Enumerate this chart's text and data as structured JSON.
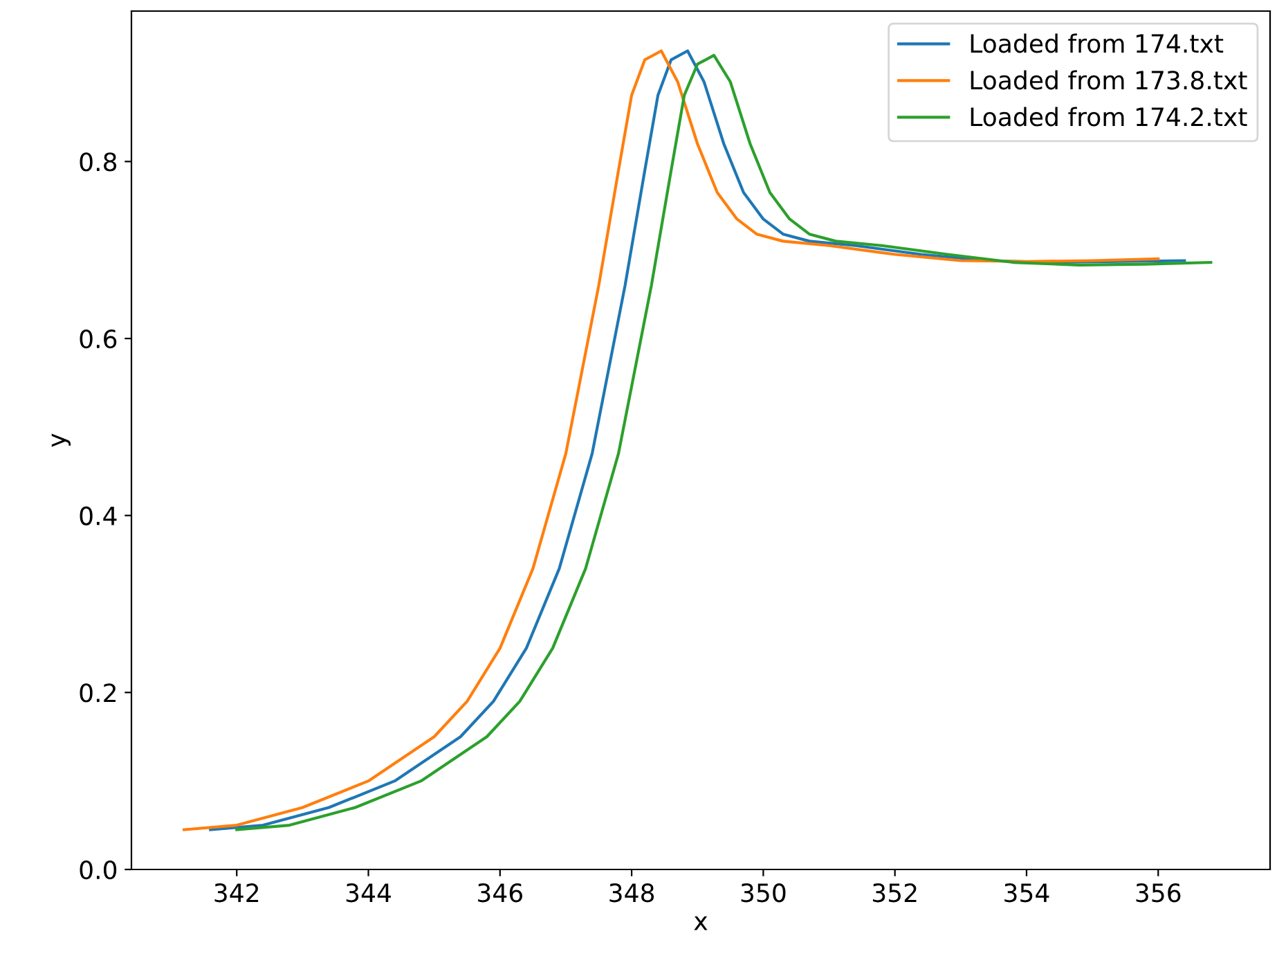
{
  "chart_data": {
    "type": "line",
    "xlabel": "x",
    "ylabel": "y",
    "xlim": [
      340.4,
      357.7
    ],
    "ylim": [
      0,
      0.97
    ],
    "xticks": [
      342,
      344,
      346,
      348,
      350,
      352,
      354,
      356
    ],
    "yticks": [
      {
        "value": 0,
        "label": "0.0"
      },
      0.2,
      0.4,
      0.6,
      0.8
    ],
    "legend": "top right",
    "grid": false,
    "series": [
      {
        "name": "Loaded from 174.txt",
        "color": "#1f77b4",
        "x": [
          341.6,
          342.4,
          343.4,
          344.4,
          345.4,
          345.9,
          346.4,
          346.9,
          347.4,
          347.9,
          348.2,
          348.4,
          348.6,
          348.85,
          349.1,
          349.4,
          349.7,
          350.0,
          350.3,
          350.7,
          351.4,
          352.4,
          353.4,
          354.4,
          355.4,
          356.4
        ],
        "values": [
          0.045,
          0.05,
          0.07,
          0.1,
          0.15,
          0.19,
          0.25,
          0.34,
          0.47,
          0.66,
          0.79,
          0.875,
          0.915,
          0.925,
          0.89,
          0.82,
          0.765,
          0.735,
          0.718,
          0.71,
          0.705,
          0.695,
          0.688,
          0.686,
          0.687,
          0.688
        ]
      },
      {
        "name": "Loaded from 173.8.txt",
        "color": "#ff7f0e",
        "x": [
          341.2,
          342.0,
          343.0,
          344.0,
          345.0,
          345.5,
          346.0,
          346.5,
          347.0,
          347.5,
          347.8,
          348.0,
          348.2,
          348.45,
          348.7,
          349.0,
          349.3,
          349.6,
          349.9,
          350.3,
          351.0,
          352.0,
          353.0,
          354.0,
          355.0,
          356.0
        ],
        "values": [
          0.045,
          0.05,
          0.07,
          0.1,
          0.15,
          0.19,
          0.25,
          0.34,
          0.47,
          0.66,
          0.79,
          0.875,
          0.915,
          0.925,
          0.89,
          0.82,
          0.765,
          0.735,
          0.718,
          0.71,
          0.705,
          0.695,
          0.688,
          0.687,
          0.688,
          0.69
        ]
      },
      {
        "name": "Loaded from 174.2.txt",
        "color": "#2ca02c",
        "x": [
          342.0,
          342.8,
          343.8,
          344.8,
          345.8,
          346.3,
          346.8,
          347.3,
          347.8,
          348.3,
          348.6,
          348.8,
          349.0,
          349.25,
          349.5,
          349.8,
          350.1,
          350.4,
          350.7,
          351.1,
          351.8,
          352.8,
          353.8,
          354.8,
          355.8,
          356.8
        ],
        "values": [
          0.045,
          0.05,
          0.07,
          0.1,
          0.15,
          0.19,
          0.25,
          0.34,
          0.47,
          0.66,
          0.79,
          0.875,
          0.91,
          0.92,
          0.89,
          0.82,
          0.765,
          0.735,
          0.718,
          0.71,
          0.705,
          0.695,
          0.686,
          0.683,
          0.684,
          0.686
        ]
      }
    ]
  }
}
